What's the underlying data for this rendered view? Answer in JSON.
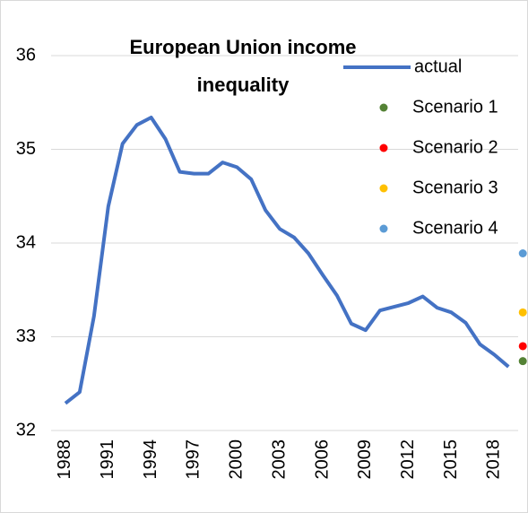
{
  "chart_data": {
    "type": "line",
    "title": "European Union income inequality",
    "x": [
      1988,
      1989,
      1990,
      1991,
      1992,
      1993,
      1994,
      1995,
      1996,
      1997,
      1998,
      1999,
      2000,
      2001,
      2002,
      2003,
      2004,
      2005,
      2006,
      2007,
      2008,
      2009,
      2010,
      2011,
      2012,
      2013,
      2014,
      2015,
      2016,
      2017,
      2018,
      2019
    ],
    "series": [
      {
        "name": "actual",
        "color": "#4472c4",
        "values": [
          32.29,
          32.41,
          33.22,
          34.39,
          35.06,
          35.26,
          35.34,
          35.11,
          34.76,
          34.74,
          34.74,
          34.86,
          34.81,
          34.68,
          34.35,
          34.15,
          34.06,
          33.89,
          33.66,
          33.44,
          33.14,
          33.07,
          33.28,
          33.32,
          33.36,
          33.43,
          33.31,
          33.26,
          33.15,
          32.92,
          32.81,
          32.68
        ]
      },
      {
        "name": "Scenario 1",
        "color": "#548235",
        "marker": true,
        "x": [
          2020
        ],
        "values": [
          32.74
        ]
      },
      {
        "name": "Scenario 2",
        "color": "#ff0000",
        "marker": true,
        "x": [
          2020
        ],
        "values": [
          32.9
        ]
      },
      {
        "name": "Scenario 3",
        "color": "#ffc000",
        "marker": true,
        "x": [
          2020
        ],
        "values": [
          33.26
        ]
      },
      {
        "name": "Scenario 4",
        "color": "#5b9bd5",
        "marker": true,
        "x": [
          2020
        ],
        "values": [
          33.89
        ]
      }
    ],
    "xlim": [
      1987,
      2020.3
    ],
    "xticks": [
      1988,
      1991,
      1994,
      1997,
      2000,
      2003,
      2006,
      2009,
      2012,
      2015,
      2018
    ],
    "ylim": [
      32,
      36
    ],
    "yticks": [
      32,
      33,
      34,
      35,
      36
    ],
    "grid": true,
    "legend": "top-right"
  }
}
